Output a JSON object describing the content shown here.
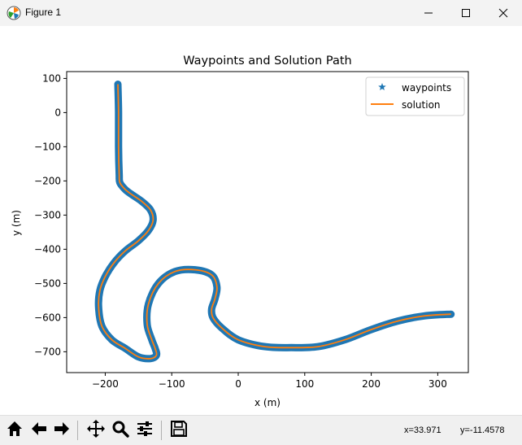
{
  "window": {
    "title": "Figure 1",
    "app_icon": "matplotlib-icon",
    "controls": [
      "minimize-icon",
      "maximize-icon",
      "close-icon"
    ]
  },
  "toolbar": {
    "buttons": [
      "home-icon",
      "back-arrow-icon",
      "forward-arrow-icon",
      "pan-icon",
      "zoom-icon",
      "configure-subplots-icon",
      "save-icon"
    ],
    "x_readout": "x=33.971",
    "y_readout": "y=-11.4578"
  },
  "chart_data": {
    "type": "line",
    "title": "Waypoints and Solution Path",
    "xlabel": "x (m)",
    "ylabel": "y (m)",
    "xlim": [
      -258,
      346
    ],
    "ylim": [
      -761,
      120
    ],
    "xticks": [
      -200,
      -100,
      0,
      100,
      200,
      300
    ],
    "yticks": [
      100,
      0,
      -100,
      -200,
      -300,
      -400,
      -500,
      -600,
      -700
    ],
    "xtick_labels": [
      "−200",
      "−100",
      "0",
      "100",
      "200",
      "300"
    ],
    "ytick_labels": [
      "100",
      "0",
      "−100",
      "−200",
      "−300",
      "−400",
      "−500",
      "−600",
      "−700"
    ],
    "legend": {
      "location": "upper right",
      "entries": [
        {
          "label": "waypoints",
          "marker": "star",
          "color": "#1f77b4"
        },
        {
          "label": "solution",
          "marker": "line",
          "color": "#ff7f0e"
        }
      ]
    },
    "series": [
      {
        "key": "waypoints",
        "color": "#1f77b4",
        "x": [
          -181,
          -180,
          -180,
          -179,
          -178,
          -170,
          -160,
          -145,
          -132,
          -128,
          -135,
          -150,
          -170,
          -187,
          -200,
          -208,
          -210,
          -205,
          -190,
          -170,
          -150,
          -132,
          -123,
          -125,
          -130,
          -137,
          -135,
          -120,
          -95,
          -65,
          -40,
          -32,
          -35,
          -40,
          -38,
          -25,
          0,
          40,
          80,
          120,
          160,
          200,
          240,
          280,
          320
        ],
        "y": [
          83,
          0,
          -100,
          -180,
          -205,
          -225,
          -240,
          -260,
          -285,
          -315,
          -345,
          -375,
          -405,
          -440,
          -480,
          -520,
          -570,
          -625,
          -665,
          -690,
          -715,
          -720,
          -710,
          -690,
          -665,
          -620,
          -560,
          -500,
          -465,
          -460,
          -475,
          -510,
          -545,
          -575,
          -600,
          -630,
          -665,
          -685,
          -688,
          -685,
          -665,
          -635,
          -610,
          -595,
          -590
        ]
      },
      {
        "key": "solution",
        "color": "#ff7f0e",
        "x": [
          -181,
          -180,
          -180,
          -179,
          -178,
          -170,
          -160,
          -145,
          -132,
          -128,
          -135,
          -150,
          -170,
          -187,
          -200,
          -208,
          -210,
          -205,
          -190,
          -170,
          -150,
          -132,
          -123,
          -125,
          -130,
          -137,
          -135,
          -120,
          -95,
          -65,
          -40,
          -32,
          -35,
          -40,
          -38,
          -25,
          0,
          40,
          80,
          120,
          160,
          200,
          240,
          280,
          320
        ],
        "y": [
          83,
          0,
          -100,
          -180,
          -205,
          -225,
          -240,
          -260,
          -285,
          -315,
          -345,
          -375,
          -405,
          -440,
          -480,
          -520,
          -570,
          -625,
          -665,
          -690,
          -715,
          -720,
          -710,
          -690,
          -665,
          -620,
          -560,
          -500,
          -465,
          -460,
          -475,
          -510,
          -545,
          -575,
          -600,
          -630,
          -665,
          -685,
          -688,
          -685,
          -665,
          -635,
          -610,
          -595,
          -590
        ]
      }
    ]
  }
}
